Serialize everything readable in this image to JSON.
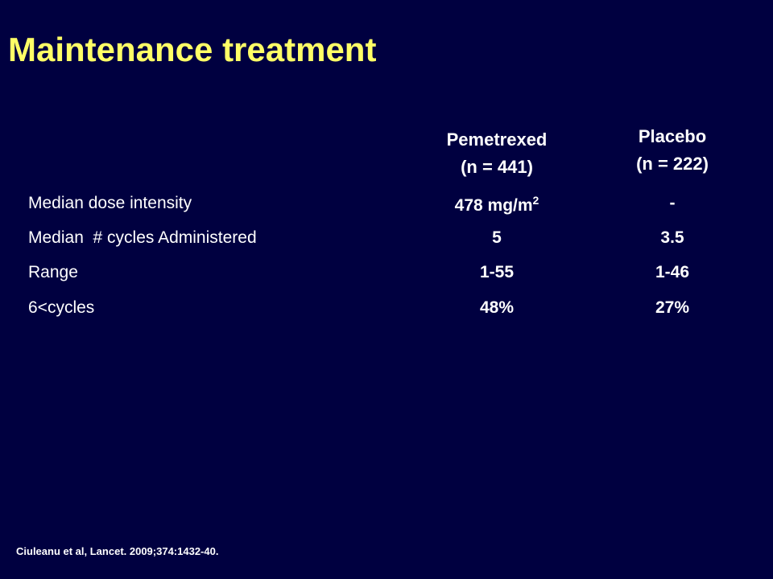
{
  "title": "Maintenance treatment",
  "table": {
    "headers": [
      [
        "Pemetrexed",
        "(n = 441)"
      ],
      [
        "Placebo",
        "(n = 222)"
      ]
    ],
    "rows": [
      [
        "Median dose intensity",
        {
          "base": "478 mg/m",
          "sup": "2"
        },
        "-"
      ],
      [
        "Median  # cycles Administered",
        "5",
        "3.5"
      ],
      [
        "Range",
        "1-55",
        "1-46"
      ],
      [
        "6<cycles",
        "48%",
        "27%"
      ]
    ]
  },
  "citation": "Ciuleanu et al, Lancet. 2009;374:1432-40."
}
